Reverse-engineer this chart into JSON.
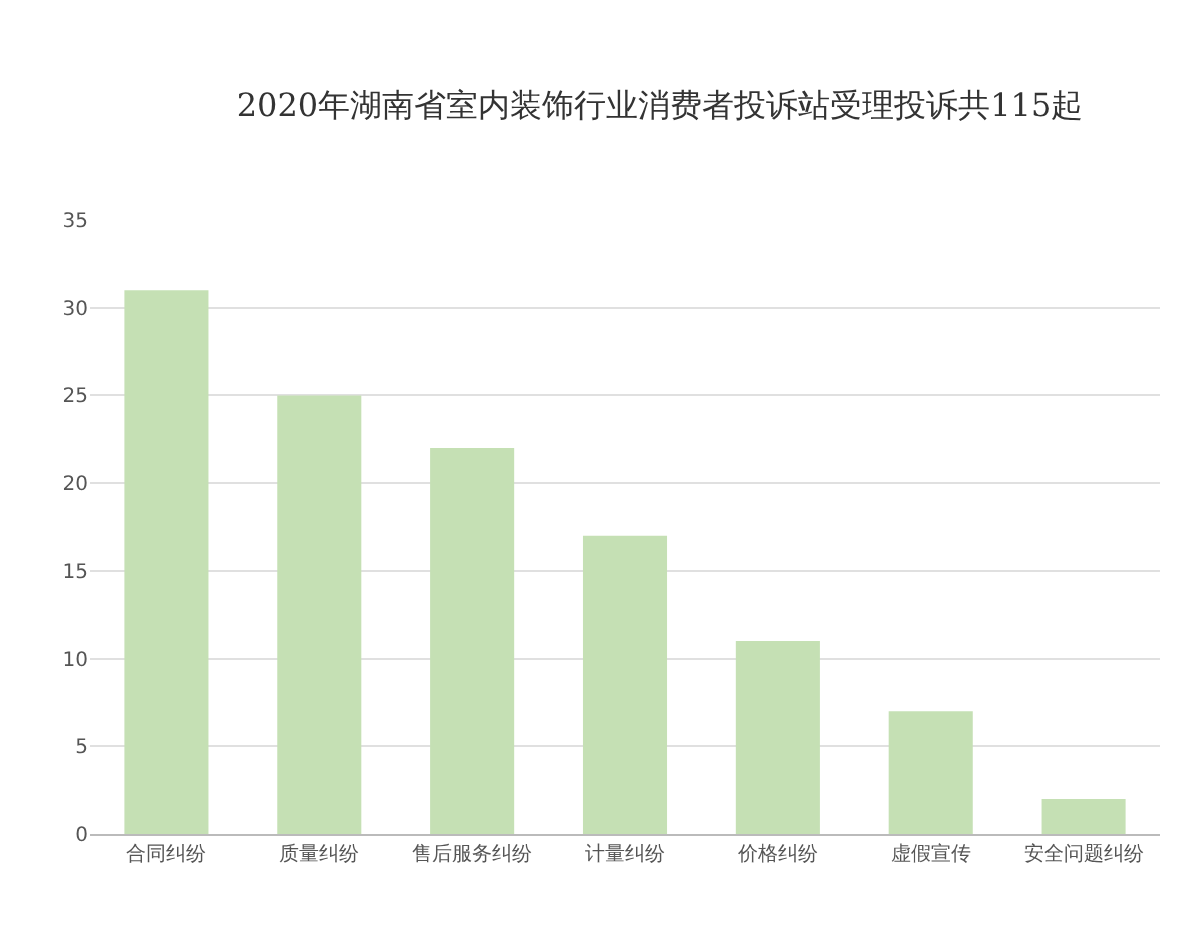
{
  "chart_data": {
    "type": "bar",
    "title": "2020年湖南省室内装饰行业消费者投诉站受理投诉共115起",
    "categories": [
      "合同纠纷",
      "质量纠纷",
      "售后服务纠纷",
      "计量纠纷",
      "价格纠纷",
      "虚假宣传",
      "安全问题纠纷"
    ],
    "values": [
      31,
      25,
      22,
      17,
      11,
      7,
      2
    ],
    "color": "#c5e0b4",
    "ylim": [
      0,
      35
    ],
    "yticks": [
      0,
      5,
      10,
      15,
      20,
      25,
      30,
      35
    ],
    "grid": "y"
  }
}
